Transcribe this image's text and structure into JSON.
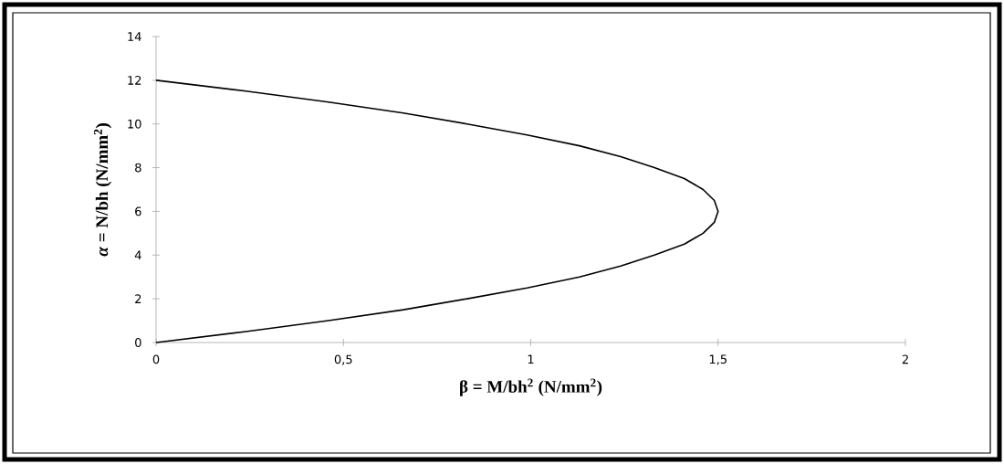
{
  "chart_data": {
    "type": "line",
    "xlabel": "β = M/bh$^{2}$  (N/mm$^{2}$)",
    "ylabel": "*α* = N/bh (N/mm$^{2}$)",
    "x": [
      0,
      0.24,
      0.46,
      0.66,
      0.83,
      0.99,
      1.13,
      1.24,
      1.33,
      1.41,
      1.46,
      1.49,
      1.5,
      1.49,
      1.46,
      1.41,
      1.33,
      1.24,
      1.13,
      0.99,
      0.83,
      0.66,
      0.46,
      0.24,
      0
    ],
    "series": [
      {
        "color": "#000000",
        "values": [
          0,
          0.5,
          1,
          1.5,
          2,
          2.5,
          3,
          3.5,
          4,
          4.5,
          5,
          5.5,
          6,
          6.5,
          7,
          7.5,
          8,
          8.5,
          9,
          9.5,
          10,
          10.5,
          11,
          11.5,
          12
        ]
      }
    ],
    "xlim": [
      0,
      2
    ],
    "ylim": [
      0,
      14
    ],
    "xticks": [
      0,
      {
        "value": 0.5,
        "label": "0,5"
      },
      1,
      {
        "value": 1.5,
        "label": "1,5"
      },
      2
    ],
    "yticks": [
      0,
      2,
      4,
      6,
      8,
      10,
      12,
      14
    ],
    "grid": false,
    "marker": "none",
    "line_style": "solid"
  }
}
